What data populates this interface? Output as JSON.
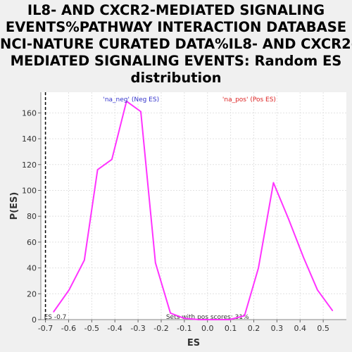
{
  "chart_data": {
    "type": "line",
    "title_lines": [
      "IL8- AND CXCR2-MEDIATED SIGNALING",
      "EVENTS%PATHWAY INTERACTION DATABASE",
      "NCI-NATURE CURATED DATA%IL8- AND CXCR2-",
      "MEDIATED SIGNALING EVENTS: Random ES",
      "distribution"
    ],
    "xlabel": "ES",
    "ylabel": "P(ES)",
    "xlim": [
      -0.72,
      0.6
    ],
    "ylim": [
      0,
      176
    ],
    "x_ticks": [
      "-0.7",
      "-0.6",
      "-0.5",
      "-0.4",
      "-0.3",
      "-0.2",
      "-0.1",
      "0.0",
      "0.1",
      "0.2",
      "0.3",
      "0.4",
      "0.5"
    ],
    "y_ticks": [
      "0",
      "20",
      "40",
      "60",
      "80",
      "100",
      "120",
      "140",
      "160"
    ],
    "grid": true,
    "line_color": "#ff33ff",
    "series": [
      {
        "x": [
          -0.665,
          -0.598,
          -0.532,
          -0.475,
          -0.413,
          -0.35,
          -0.288,
          -0.225,
          -0.16,
          -0.1,
          -0.035,
          0.03,
          0.095,
          0.16,
          0.22,
          0.285,
          0.35,
          0.415,
          0.475,
          0.54
        ],
        "y": [
          6,
          23,
          46,
          116,
          124,
          169,
          161,
          44,
          5,
          1,
          0,
          0,
          0,
          3,
          40,
          106,
          78,
          48,
          23,
          7
        ]
      }
    ],
    "legend": [
      {
        "label": "'na_neg' (Neg ES)",
        "color": "#3333cc"
      },
      {
        "label": "'na_pos' (Pos ES)",
        "color": "#dd2222"
      }
    ],
    "annotations": {
      "es_marker_label": "ES -0.7",
      "es_marker_x": -0.7,
      "sets_label": "Sets with pos scores: 31%"
    }
  }
}
